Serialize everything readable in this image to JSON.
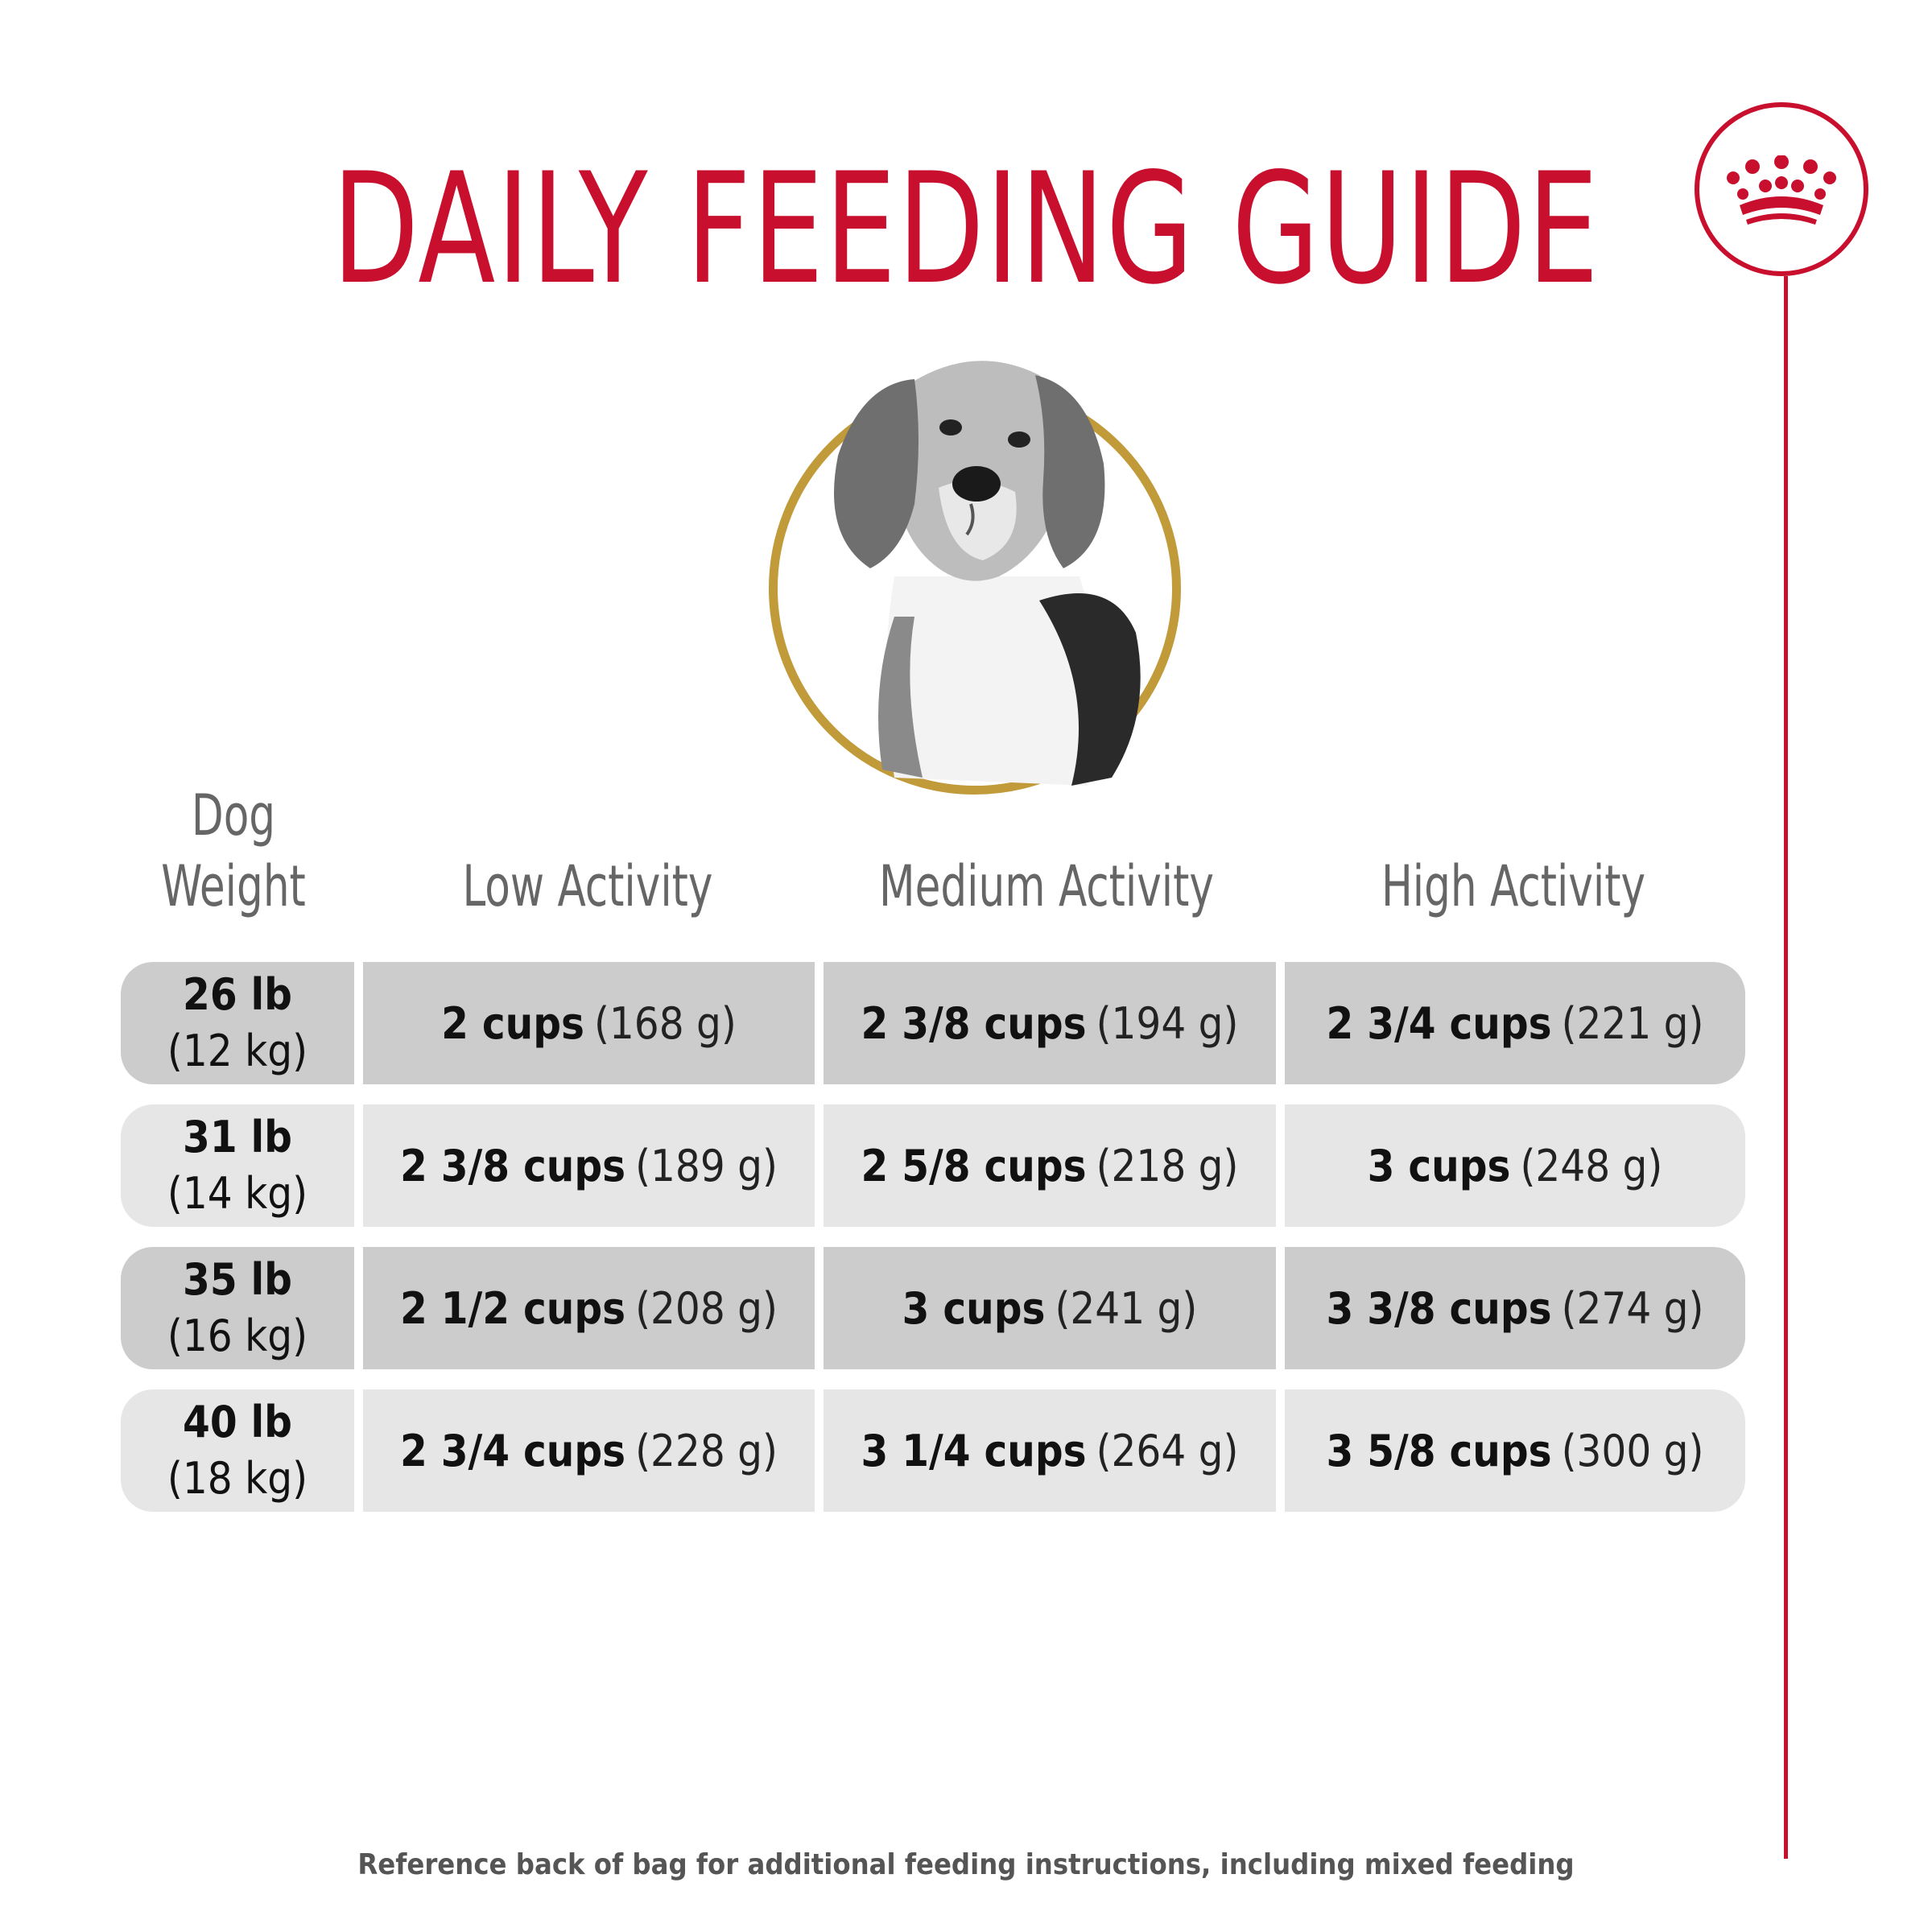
{
  "title": "DAILY FEEDING GUIDE",
  "brand_color": "#c8102e",
  "accent_color": "#c19a3a",
  "icons": [
    "crown-logo-icon",
    "beagle-portrait"
  ],
  "headers": {
    "weight": [
      "Dog",
      "Weight"
    ],
    "low": "Low Activity",
    "medium": "Medium Activity",
    "high": "High Activity"
  },
  "rows": [
    {
      "weight_lb": "26 lb",
      "weight_kg": "(12 kg)",
      "low": {
        "cups": "2 cups",
        "grams": "(168 g)"
      },
      "medium": {
        "cups": "2 3/8 cups",
        "grams": "(194 g)"
      },
      "high": {
        "cups": "2 3/4 cups",
        "grams": "(221 g)"
      }
    },
    {
      "weight_lb": "31 lb",
      "weight_kg": "(14 kg)",
      "low": {
        "cups": "2 3/8 cups",
        "grams": "(189 g)"
      },
      "medium": {
        "cups": "2 5/8 cups",
        "grams": "(218 g)"
      },
      "high": {
        "cups": "3 cups",
        "grams": "(248 g)"
      }
    },
    {
      "weight_lb": "35 lb",
      "weight_kg": "(16 kg)",
      "low": {
        "cups": "2 1/2 cups",
        "grams": "(208 g)"
      },
      "medium": {
        "cups": "3 cups",
        "grams": "(241 g)"
      },
      "high": {
        "cups": "3 3/8 cups",
        "grams": "(274 g)"
      }
    },
    {
      "weight_lb": "40 lb",
      "weight_kg": "(18 kg)",
      "low": {
        "cups": "2 3/4 cups",
        "grams": "(228 g)"
      },
      "medium": {
        "cups": "3 1/4 cups",
        "grams": "(264 g)"
      },
      "high": {
        "cups": "3 5/8 cups",
        "grams": "(300 g)"
      }
    }
  ],
  "footer": "Reference back of bag for additional feeding instructions, including mixed feeding"
}
